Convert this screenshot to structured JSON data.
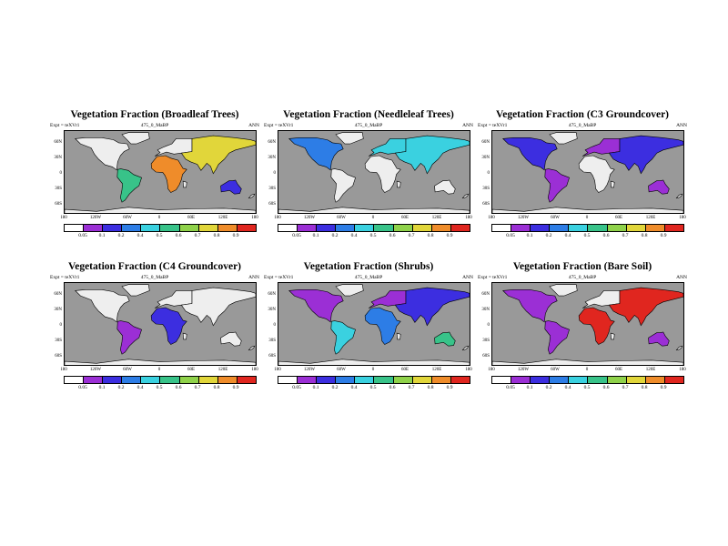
{
  "header": {
    "expt": "Expt = teXVr1",
    "case": "475_0_MaBP",
    "season": "ANN"
  },
  "lat_ticks": [
    "60N",
    "30N",
    "0",
    "30S",
    "60S"
  ],
  "lon_ticks": [
    "180",
    "120W",
    "60W",
    "0",
    "60E",
    "120E",
    "180"
  ],
  "colorbar": {
    "labels": [
      "0.05",
      "0.1",
      "0.2",
      "0.4",
      "0.5",
      "0.6",
      "0.7",
      "0.8",
      "0.9"
    ],
    "colors": [
      "#ffffff",
      "#9b2fd5",
      "#3c2ee0",
      "#2d7de6",
      "#3ad1e0",
      "#38c389",
      "#8fd24a",
      "#e1d63a",
      "#ef8c2a",
      "#e0261f"
    ]
  },
  "panels": [
    {
      "title": "Vegetation Fraction (Broadleaf Trees)",
      "fill": "broadleaf"
    },
    {
      "title": "Vegetation Fraction (Needleleaf Trees)",
      "fill": "needleleaf"
    },
    {
      "title": "Vegetation Fraction (C3 Groundcover)",
      "fill": "c3"
    },
    {
      "title": "Vegetation Fraction (C4 Groundcover)",
      "fill": "c4"
    },
    {
      "title": "Vegetation Fraction (Shrubs)",
      "fill": "shrubs"
    },
    {
      "title": "Vegetation Fraction (Bare Soil)",
      "fill": "bare"
    }
  ]
}
